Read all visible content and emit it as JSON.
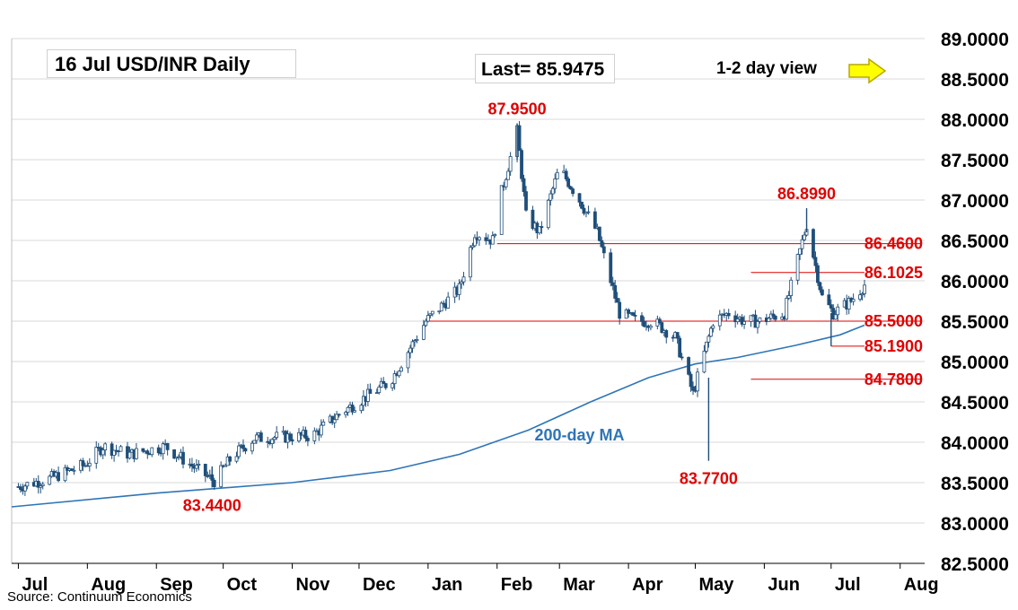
{
  "header": {
    "title": "16 Jul  USD/INR  Daily",
    "last": "Last= 85.9475",
    "view": "1-2 day view"
  },
  "source": "Source: Continuum Economics",
  "colors": {
    "candle": "#1f4e79",
    "ma": "#2e75b6",
    "level": "#e00000",
    "grid": "#d9d9d9",
    "arrow": "#ffff00"
  },
  "chart_data": {
    "type": "candlestick",
    "title": "16 Jul  USD/INR  Daily",
    "ylim": [
      82.5,
      89.0
    ],
    "y_ticks": [
      "89.0000",
      "88.5000",
      "88.0000",
      "87.5000",
      "87.0000",
      "86.5000",
      "86.0000",
      "85.5000",
      "85.0000",
      "84.5000",
      "84.0000",
      "83.5000",
      "83.0000",
      "82.5000"
    ],
    "y_tick_values": [
      89.0,
      88.5,
      88.0,
      87.5,
      87.0,
      86.5,
      86.0,
      85.5,
      85.0,
      84.5,
      84.0,
      83.5,
      83.0,
      82.5
    ],
    "x_ticks": [
      "Jul",
      "Aug",
      "Sep",
      "Oct",
      "Nov",
      "Dec",
      "Jan",
      "Feb",
      "Mar",
      "Apr",
      "May",
      "Jun",
      "Jul",
      "Aug"
    ],
    "x_tick_dates": [
      "2024-07-01",
      "2024-08-01",
      "2024-09-01",
      "2024-10-01",
      "2024-11-01",
      "2024-12-01",
      "2025-01-01",
      "2025-02-01",
      "2025-03-01",
      "2025-04-01",
      "2025-05-01",
      "2025-06-01",
      "2025-07-01",
      "2025-08-01"
    ],
    "x_range": [
      "2024-06-28",
      "2025-08-12"
    ],
    "path": [
      [
        "2024-07-01",
        83.45
      ],
      [
        "2024-07-15",
        83.55
      ],
      [
        "2024-07-31",
        83.72
      ],
      [
        "2024-08-08",
        83.95
      ],
      [
        "2024-08-20",
        83.85
      ],
      [
        "2024-09-05",
        83.95
      ],
      [
        "2024-09-20",
        83.65
      ],
      [
        "2024-09-27",
        83.52
      ],
      [
        "2024-10-05",
        83.82
      ],
      [
        "2024-10-15",
        84.05
      ],
      [
        "2024-11-10",
        84.08
      ],
      [
        "2024-11-22",
        84.35
      ],
      [
        "2024-12-15",
        84.75
      ],
      [
        "2024-12-31",
        85.5
      ],
      [
        "2025-01-15",
        85.9
      ],
      [
        "2025-01-22",
        86.6
      ],
      [
        "2025-01-30",
        86.5
      ],
      [
        "2025-02-03",
        87.1
      ],
      [
        "2025-02-10",
        87.85
      ],
      [
        "2025-02-14",
        86.8
      ],
      [
        "2025-02-20",
        86.6
      ],
      [
        "2025-03-01",
        87.4
      ],
      [
        "2025-03-10",
        87.0
      ],
      [
        "2025-03-18",
        86.6
      ],
      [
        "2025-03-28",
        85.6
      ],
      [
        "2025-04-05",
        85.5
      ],
      [
        "2025-04-12",
        85.5
      ],
      [
        "2025-04-22",
        85.3
      ],
      [
        "2025-04-30",
        84.6
      ],
      [
        "2025-05-09",
        85.5
      ],
      [
        "2025-05-16",
        85.6
      ],
      [
        "2025-05-23",
        85.5
      ],
      [
        "2025-05-30",
        85.5
      ],
      [
        "2025-06-10",
        85.6
      ],
      [
        "2025-06-20",
        86.7
      ],
      [
        "2025-06-27",
        85.8
      ],
      [
        "2025-07-02",
        85.6
      ],
      [
        "2025-07-10",
        85.75
      ],
      [
        "2025-07-16",
        85.95
      ]
    ],
    "wicks": [
      {
        "date": "2025-02-10",
        "high": 87.95,
        "low": 87.5
      },
      {
        "date": "2025-05-07",
        "high": 84.8,
        "low": 83.77
      },
      {
        "date": "2024-09-26",
        "high": 83.7,
        "low": 83.44
      },
      {
        "date": "2025-06-20",
        "high": 86.899,
        "low": 86.6
      },
      {
        "date": "2025-07-01",
        "high": 85.6,
        "low": 85.19
      }
    ],
    "ma200": {
      "name": "200-day MA",
      "points": [
        [
          "2024-06-28",
          83.2
        ],
        [
          "2024-09-01",
          83.37
        ],
        [
          "2024-11-01",
          83.5
        ],
        [
          "2024-12-15",
          83.65
        ],
        [
          "2025-01-15",
          83.85
        ],
        [
          "2025-02-15",
          84.15
        ],
        [
          "2025-03-15",
          84.5
        ],
        [
          "2025-04-10",
          84.8
        ],
        [
          "2025-05-01",
          84.97
        ],
        [
          "2025-05-20",
          85.05
        ],
        [
          "2025-06-15",
          85.2
        ],
        [
          "2025-07-05",
          85.33
        ],
        [
          "2025-07-16",
          85.45
        ]
      ]
    },
    "levels": [
      {
        "value": 86.46,
        "label": "86.4600",
        "from": "2025-02-01",
        "to": "2025-08-10"
      },
      {
        "value": 86.1025,
        "label": "86.1025",
        "from": "2025-05-26",
        "to": "2025-07-16"
      },
      {
        "value": 85.5,
        "label": "85.5000",
        "from": "2024-12-31",
        "to": "2025-08-10"
      },
      {
        "value": 85.19,
        "label": "85.1900",
        "from": "2025-07-01",
        "to": "2025-07-16"
      },
      {
        "value": 84.78,
        "label": "84.7800",
        "from": "2025-05-26",
        "to": "2025-08-10"
      }
    ],
    "annotations": [
      {
        "text": "87.9500",
        "value": 87.95,
        "date": "2025-02-10",
        "pos": "above"
      },
      {
        "text": "86.8990",
        "value": 86.899,
        "date": "2025-06-20",
        "pos": "above"
      },
      {
        "text": "83.7700",
        "value": 83.77,
        "date": "2025-05-07",
        "pos": "below"
      },
      {
        "text": "83.4400",
        "value": 83.44,
        "date": "2024-09-26",
        "pos": "below"
      }
    ],
    "series_labels": [
      {
        "text": "200-day MA",
        "date": "2025-03-10",
        "value": 84.1
      }
    ]
  }
}
